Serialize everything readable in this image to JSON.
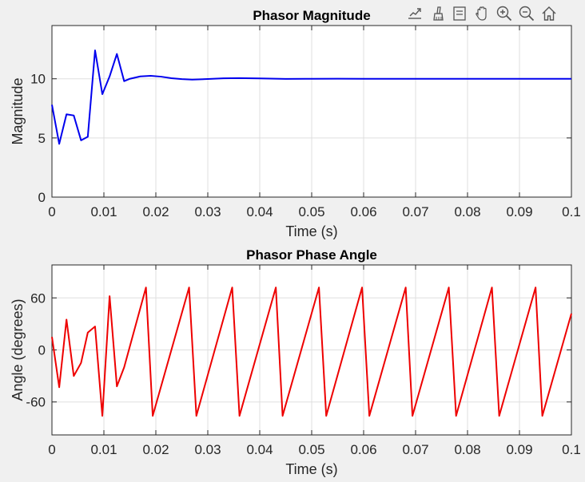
{
  "toolbar": {
    "items": [
      {
        "name": "export-icon"
      },
      {
        "name": "brush-icon"
      },
      {
        "name": "datatip-icon"
      },
      {
        "name": "pan-hand-icon"
      },
      {
        "name": "zoom-in-icon"
      },
      {
        "name": "zoom-out-icon"
      },
      {
        "name": "home-icon"
      }
    ]
  },
  "chart_data": [
    {
      "type": "line",
      "title": "Phasor Magnitude",
      "xlabel": "Time (s)",
      "ylabel": "Magnitude",
      "xlim": [
        0,
        0.1
      ],
      "ylim": [
        0,
        14.5
      ],
      "xticks": [
        0,
        0.01,
        0.02,
        0.03,
        0.04,
        0.05,
        0.06,
        0.07,
        0.08,
        0.09,
        0.1
      ],
      "xtick_labels": [
        "0",
        "0.01",
        "0.02",
        "0.03",
        "0.04",
        "0.05",
        "0.06",
        "0.07",
        "0.08",
        "0.09",
        "0.1"
      ],
      "yticks": [
        0,
        5,
        10
      ],
      "ytick_labels": [
        "0",
        "5",
        "10"
      ],
      "grid": true,
      "color": "#0000ee",
      "series": [
        {
          "x": [
            0,
            0.0014,
            0.0028,
            0.0042,
            0.0056,
            0.0069,
            0.0083,
            0.0097,
            0.0111,
            0.0125,
            0.0139,
            0.015,
            0.017,
            0.019,
            0.021,
            0.023,
            0.025,
            0.027,
            0.03,
            0.033,
            0.036,
            0.04,
            0.045,
            0.05,
            0.055,
            0.06,
            0.07,
            0.08,
            0.09,
            0.1
          ],
          "y": [
            7.8,
            4.5,
            7.0,
            6.9,
            4.8,
            5.1,
            12.4,
            8.7,
            10.2,
            12.1,
            9.8,
            10.0,
            10.2,
            10.25,
            10.18,
            10.05,
            9.97,
            9.93,
            9.98,
            10.04,
            10.06,
            10.03,
            9.99,
            10.0,
            10.01,
            10.0,
            10.0,
            10.0,
            10.0,
            10.0
          ]
        }
      ]
    },
    {
      "type": "line",
      "title": "Phasor Phase Angle",
      "xlabel": "Time (s)",
      "ylabel": "Angle (degrees)",
      "xlim": [
        0,
        0.1
      ],
      "ylim": [
        -98,
        98
      ],
      "xticks": [
        0,
        0.01,
        0.02,
        0.03,
        0.04,
        0.05,
        0.06,
        0.07,
        0.08,
        0.09,
        0.1
      ],
      "xtick_labels": [
        "0",
        "0.01",
        "0.02",
        "0.03",
        "0.04",
        "0.05",
        "0.06",
        "0.07",
        "0.08",
        "0.09",
        "0.1"
      ],
      "yticks": [
        -60,
        0,
        60
      ],
      "ytick_labels": [
        "-60",
        "0",
        "60"
      ],
      "grid": true,
      "color": "#ee0000",
      "series": [
        {
          "x": [
            0,
            0.0014,
            0.0028,
            0.0042,
            0.0056,
            0.0069,
            0.0083,
            0.0097,
            0.0111,
            0.0125,
            0.0139,
            0.0181,
            0.0194,
            0.0264,
            0.0278,
            0.0347,
            0.0361,
            0.0431,
            0.0444,
            0.0514,
            0.0528,
            0.0597,
            0.0611,
            0.0681,
            0.0694,
            0.0764,
            0.0778,
            0.0847,
            0.0861,
            0.0931,
            0.0944,
            0.1
          ],
          "y": [
            15,
            -43,
            35,
            -30,
            -15,
            20,
            27,
            -76,
            62,
            -42,
            -20,
            72,
            -76,
            72,
            -76,
            72,
            -76,
            72,
            -76,
            72,
            -76,
            72,
            -76,
            72,
            -76,
            72,
            -76,
            72,
            -76,
            72,
            -76,
            42
          ]
        }
      ]
    }
  ]
}
